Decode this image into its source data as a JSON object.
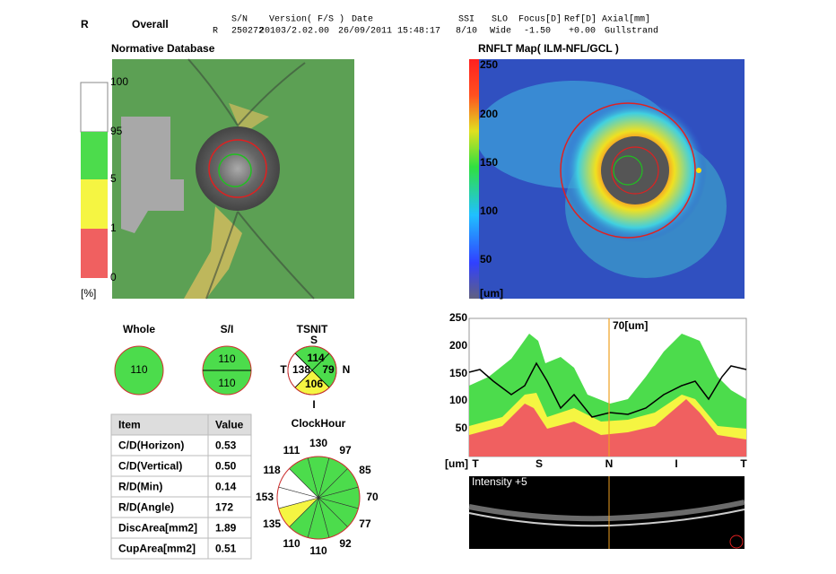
{
  "header": {
    "eye": "R",
    "scan": "Overall",
    "row_eye": "R",
    "fields": [
      {
        "label": "S/N",
        "value": "250272"
      },
      {
        "label": "Version( F/S )",
        "value": "20103/2.02.00"
      },
      {
        "label": "Date",
        "value": "26/09/2011 15:48:17"
      },
      {
        "label": "SSI",
        "value": "8/10"
      },
      {
        "label": "SLO",
        "value": "Wide"
      },
      {
        "label": "Focus[D]",
        "value": "-1.50"
      },
      {
        "label": "Ref[D]",
        "value": "+0.00"
      },
      {
        "label": "Axial[mm]",
        "value": "Gullstrand"
      }
    ]
  },
  "normative": {
    "title": "Normative Database",
    "scale_labels": [
      "100",
      "95",
      "5",
      "1",
      "0"
    ],
    "unit": "[%]"
  },
  "rnflt_map": {
    "title": "RNFLT Map( ILM-NFL/GCL )",
    "scale_labels": [
      "250",
      "200",
      "150",
      "100",
      "50"
    ],
    "unit": "[um]"
  },
  "whole": {
    "label": "Whole",
    "value": 110,
    "color": "#4cdc4c"
  },
  "si": {
    "label": "S/I",
    "values": [
      110,
      110
    ],
    "color": "#4cdc4c"
  },
  "tsnit": {
    "label": "TSNIT",
    "quadrant_labels": [
      "S",
      "N",
      "I",
      "T"
    ],
    "values": [
      114,
      79,
      106,
      138
    ],
    "colors": [
      "#4cdc4c",
      "#4cdc4c",
      "#f5f542",
      "#ffffff"
    ]
  },
  "table": {
    "header": [
      "Item",
      "Value"
    ],
    "rows": [
      [
        "C/D(Horizon)",
        "0.53"
      ],
      [
        "C/D(Vertical)",
        "0.50"
      ],
      [
        "R/D(Min)",
        "0.14"
      ],
      [
        "R/D(Angle)",
        172
      ],
      [
        "DiscArea[mm2]",
        "1.89"
      ],
      [
        "CupArea[mm2]",
        "0.51"
      ]
    ]
  },
  "clock_hour": {
    "title": "ClockHour",
    "values": [
      130,
      97,
      85,
      70,
      77,
      92,
      110,
      110,
      135,
      153,
      118,
      111
    ],
    "colors": [
      "#4cdc4c",
      "#4cdc4c",
      "#4cdc4c",
      "#4cdc4c",
      "#4cdc4c",
      "#4cdc4c",
      "#4cdc4c",
      "#4cdc4c",
      "#f5f542",
      "#ffffff",
      "#ffffff",
      "#4cdc4c"
    ]
  },
  "tsnit_graph": {
    "yticks": [
      "250",
      "200",
      "150",
      "100",
      "50"
    ],
    "unit": "[um]",
    "x_labels": [
      "T",
      "S",
      "N",
      "I",
      "T"
    ],
    "cursor_label": "70[um]"
  },
  "bscan": {
    "label": "Intensity +5"
  }
}
